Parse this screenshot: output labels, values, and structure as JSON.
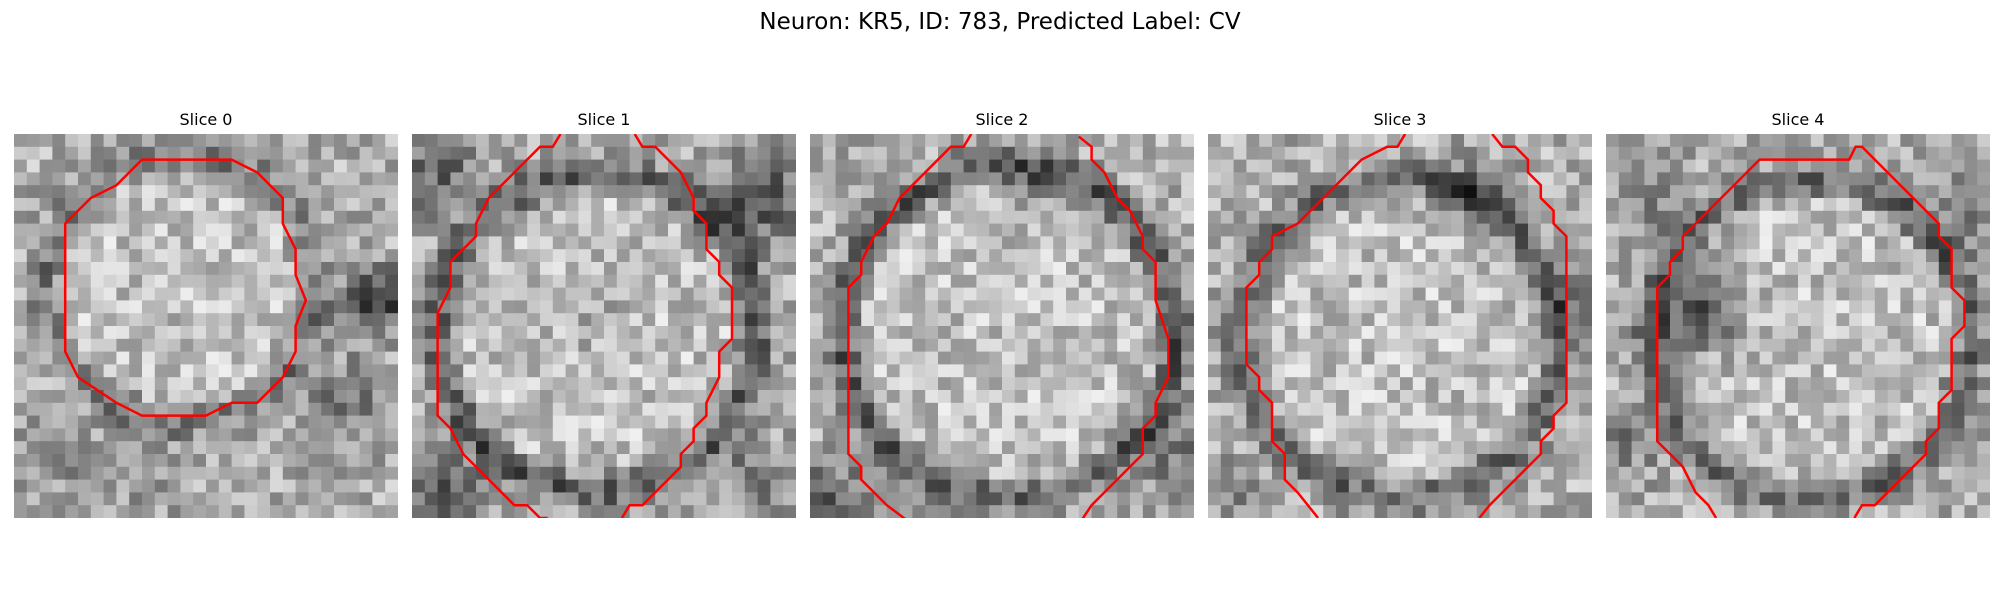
{
  "figure": {
    "title": "Neuron: KR5, ID: 783, Predicted Label: CV"
  },
  "colors": {
    "outline": "#ff0000",
    "background": "#ffffff",
    "colormap": "grayscale"
  },
  "panels": [
    {
      "title": "Slice 0"
    },
    {
      "title": "Slice 1"
    },
    {
      "title": "Slice 2"
    },
    {
      "title": "Slice 3"
    },
    {
      "title": "Slice 4"
    }
  ]
}
